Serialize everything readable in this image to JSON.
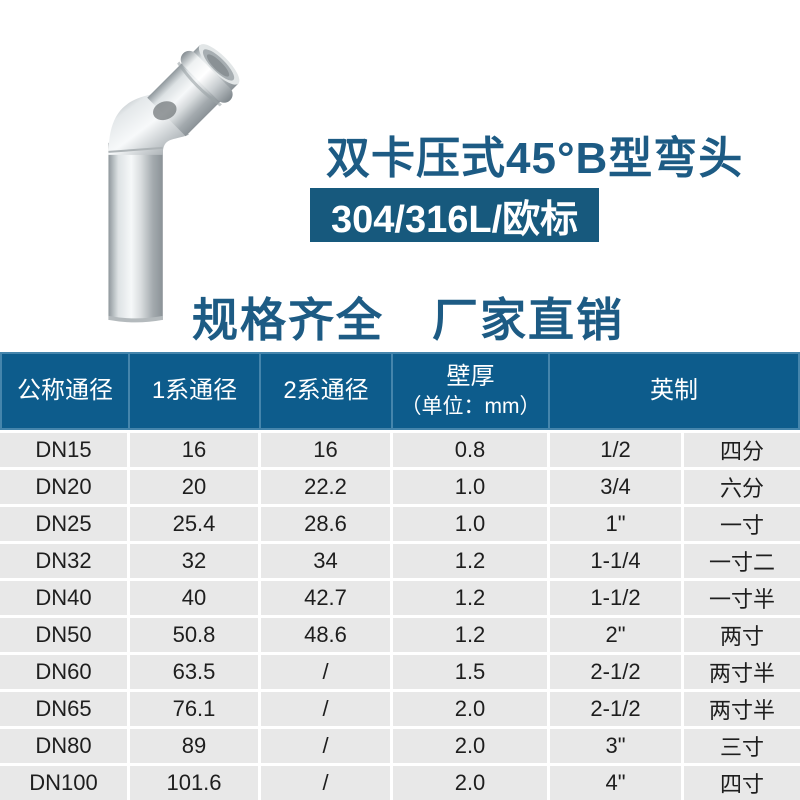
{
  "title": "双卡压式45°B型弯头",
  "badge": "304/316L/欧标",
  "tagline": "规格齐全　厂家直销",
  "photo": {
    "name": "stainless-steel-45-degree-press-elbow"
  },
  "colors": {
    "accent_blue": "#0d5c8c",
    "badge_blue": "#17597d",
    "title_blue": "#1d5b84",
    "header_border": "#4585ac",
    "header_text": "#ffffff",
    "row_bg": "#e8e8e8",
    "body_text": "#1e1e1e",
    "page_bg": "#ffffff"
  },
  "table": {
    "headers": [
      {
        "label": "公称通径"
      },
      {
        "label": "1系通径"
      },
      {
        "label": "2系通径"
      },
      {
        "label": "壁厚",
        "sub": "（单位：mm）"
      },
      {
        "label": "英制"
      }
    ],
    "rows": [
      [
        "DN15",
        "16",
        "16",
        "0.8",
        "1/2",
        "四分"
      ],
      [
        "DN20",
        "20",
        "22.2",
        "1.0",
        "3/4",
        "六分"
      ],
      [
        "DN25",
        "25.4",
        "28.6",
        "1.0",
        "1\"",
        "一寸"
      ],
      [
        "DN32",
        "32",
        "34",
        "1.2",
        "1-1/4",
        "一寸二"
      ],
      [
        "DN40",
        "40",
        "42.7",
        "1.2",
        "1-1/2",
        "一寸半"
      ],
      [
        "DN50",
        "50.8",
        "48.6",
        "1.2",
        "2\"",
        "两寸"
      ],
      [
        "DN60",
        "63.5",
        "/",
        "1.5",
        "2-1/2",
        "两寸半"
      ],
      [
        "DN65",
        "76.1",
        "/",
        "2.0",
        "2-1/2",
        "两寸半"
      ],
      [
        "DN80",
        "89",
        "/",
        "2.0",
        "3\"",
        "三寸"
      ],
      [
        "DN100",
        "101.6",
        "/",
        "2.0",
        "4\"",
        "四寸"
      ]
    ]
  }
}
